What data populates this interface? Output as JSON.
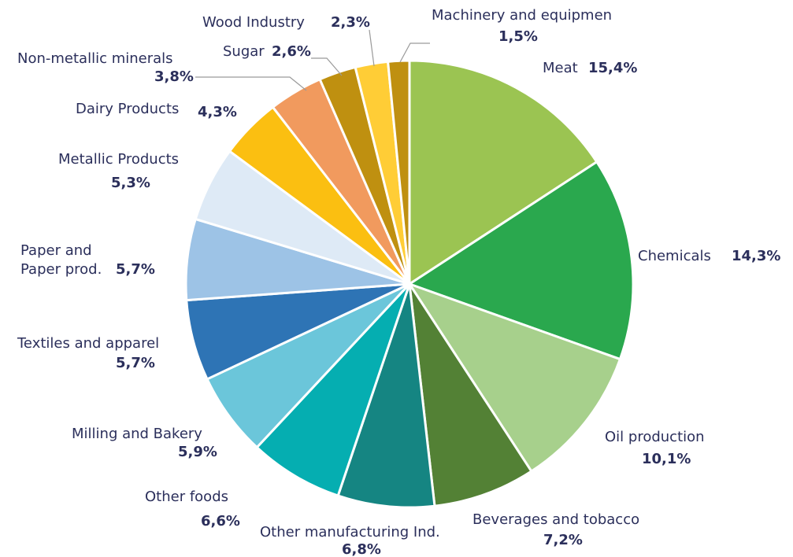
{
  "chart_data": {
    "type": "pie",
    "title": "",
    "legend": "none",
    "slices": [
      {
        "label": "Meat",
        "value": 15.4,
        "text": "15,4%",
        "color": "#9bc452"
      },
      {
        "label": "Chemicals",
        "value": 14.3,
        "text": "14,3%",
        "color": "#2aa84e"
      },
      {
        "label": "Oil production",
        "value": 10.1,
        "text": "10,1%",
        "color": "#a7d08c"
      },
      {
        "label": "Beverages and tobacco",
        "value": 7.2,
        "text": "7,2%",
        "color": "#538135"
      },
      {
        "label": "Other manufacturing Ind.",
        "value": 6.8,
        "text": "6,8%",
        "color": "#158582"
      },
      {
        "label": "Other foods",
        "value": 6.6,
        "text": "6,6%",
        "color": "#05aeb1"
      },
      {
        "label": "Milling and Bakery",
        "value": 5.9,
        "text": "5,9%",
        "color": "#6bc6da"
      },
      {
        "label": "Textiles and apparel",
        "value": 5.7,
        "text": "5,7%",
        "color": "#2e74b5"
      },
      {
        "label": "Paper and Paper prod.",
        "value": 5.7,
        "text": "5,7%",
        "color": "#9dc3e6"
      },
      {
        "label": "Metallic Products",
        "value": 5.3,
        "text": "5,3%",
        "color": "#deeaf6"
      },
      {
        "label": "Dairy Products",
        "value": 4.3,
        "text": "4,3%",
        "color": "#fbbf11"
      },
      {
        "label": "Non-metallic minerals",
        "value": 3.8,
        "text": "3,8%",
        "color": "#f19a5e"
      },
      {
        "label": "Sugar",
        "value": 2.6,
        "text": "2,6%",
        "color": "#bf9010"
      },
      {
        "label": "Wood Industry",
        "value": 2.3,
        "text": "2,3%",
        "color": "#ffcd36"
      },
      {
        "label": "Machinery and equipmen",
        "value": 1.5,
        "text": "1,5%",
        "color": "#bf9010"
      }
    ]
  },
  "labels": {
    "meat": "Meat",
    "chemicals": "Chemicals",
    "oil": "Oil production",
    "beverages": "Beverages and tobacco",
    "other_manufacturing": "Other manufacturing Ind.",
    "other_foods": "Other foods",
    "milling": "Milling and Bakery",
    "textiles": "Textiles and apparel",
    "paper_line1": "Paper and",
    "paper_line2": "Paper prod.",
    "metallic": "Metallic Products",
    "dairy": "Dairy Products",
    "nonmetallic": "Non-metallic minerals",
    "sugar": "Sugar",
    "wood": "Wood Industry",
    "machinery": "Machinery and equipmen"
  },
  "values": {
    "meat": "15,4%",
    "chemicals": "14,3%",
    "oil": "10,1%",
    "beverages": "7,2%",
    "other_manufacturing": "6,8%",
    "other_foods": "6,6%",
    "milling": "5,9%",
    "textiles": "5,7%",
    "paper": "5,7%",
    "metallic": "5,3%",
    "dairy": "4,3%",
    "nonmetallic": "3,8%",
    "sugar": "2,6%",
    "wood": "2,3%",
    "machinery": "1,5%"
  }
}
